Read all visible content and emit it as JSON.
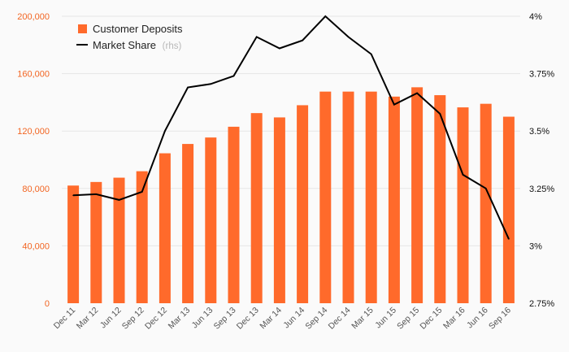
{
  "chart_data": {
    "type": "bar",
    "categories": [
      "Dec 11",
      "Mar 12",
      "Jun 12",
      "Sep 12",
      "Dec 12",
      "Mar 13",
      "Jun 13",
      "Sep 13",
      "Dec 13",
      "Mar 14",
      "Jun 14",
      "Sep 14",
      "Dec 14",
      "Mar 15",
      "Jun 15",
      "Sep 15",
      "Dec 15",
      "Mar 16",
      "Jun 16",
      "Sep 16"
    ],
    "series": [
      {
        "name": "Customer Deposits",
        "type": "bar",
        "axis": "left",
        "color": "#ff6a2b",
        "values": [
          82000,
          84500,
          87500,
          92000,
          104500,
          111000,
          115500,
          123000,
          132500,
          129500,
          138000,
          147500,
          147500,
          147500,
          144000,
          150500,
          145000,
          136500,
          139000,
          130000
        ]
      },
      {
        "name": "Market Share",
        "name_suffix": "(rhs)",
        "type": "line",
        "axis": "right",
        "color": "#000000",
        "values": [
          3.22,
          3.225,
          3.2,
          3.235,
          3.5,
          3.69,
          3.705,
          3.74,
          3.91,
          3.86,
          3.895,
          4.0,
          3.91,
          3.835,
          3.615,
          3.665,
          3.575,
          3.31,
          3.25,
          3.03
        ]
      }
    ],
    "y_left": {
      "ylim": [
        0,
        200000
      ],
      "ticks": [
        0,
        40000,
        80000,
        120000,
        160000,
        200000
      ],
      "tick_labels": [
        "0",
        "40,000",
        "80,000",
        "120,000",
        "160,000",
        "200,000"
      ],
      "color": "#f26522"
    },
    "y_right": {
      "ylim": [
        2.75,
        4.0
      ],
      "ticks": [
        2.75,
        3.0,
        3.25,
        3.5,
        3.75,
        4.0
      ],
      "tick_labels": [
        "2.75%",
        "3%",
        "3.25%",
        "3.5%",
        "3.75%",
        "4%"
      ],
      "color": "#111111"
    },
    "grid": "horizontal",
    "legend": "top-left"
  }
}
